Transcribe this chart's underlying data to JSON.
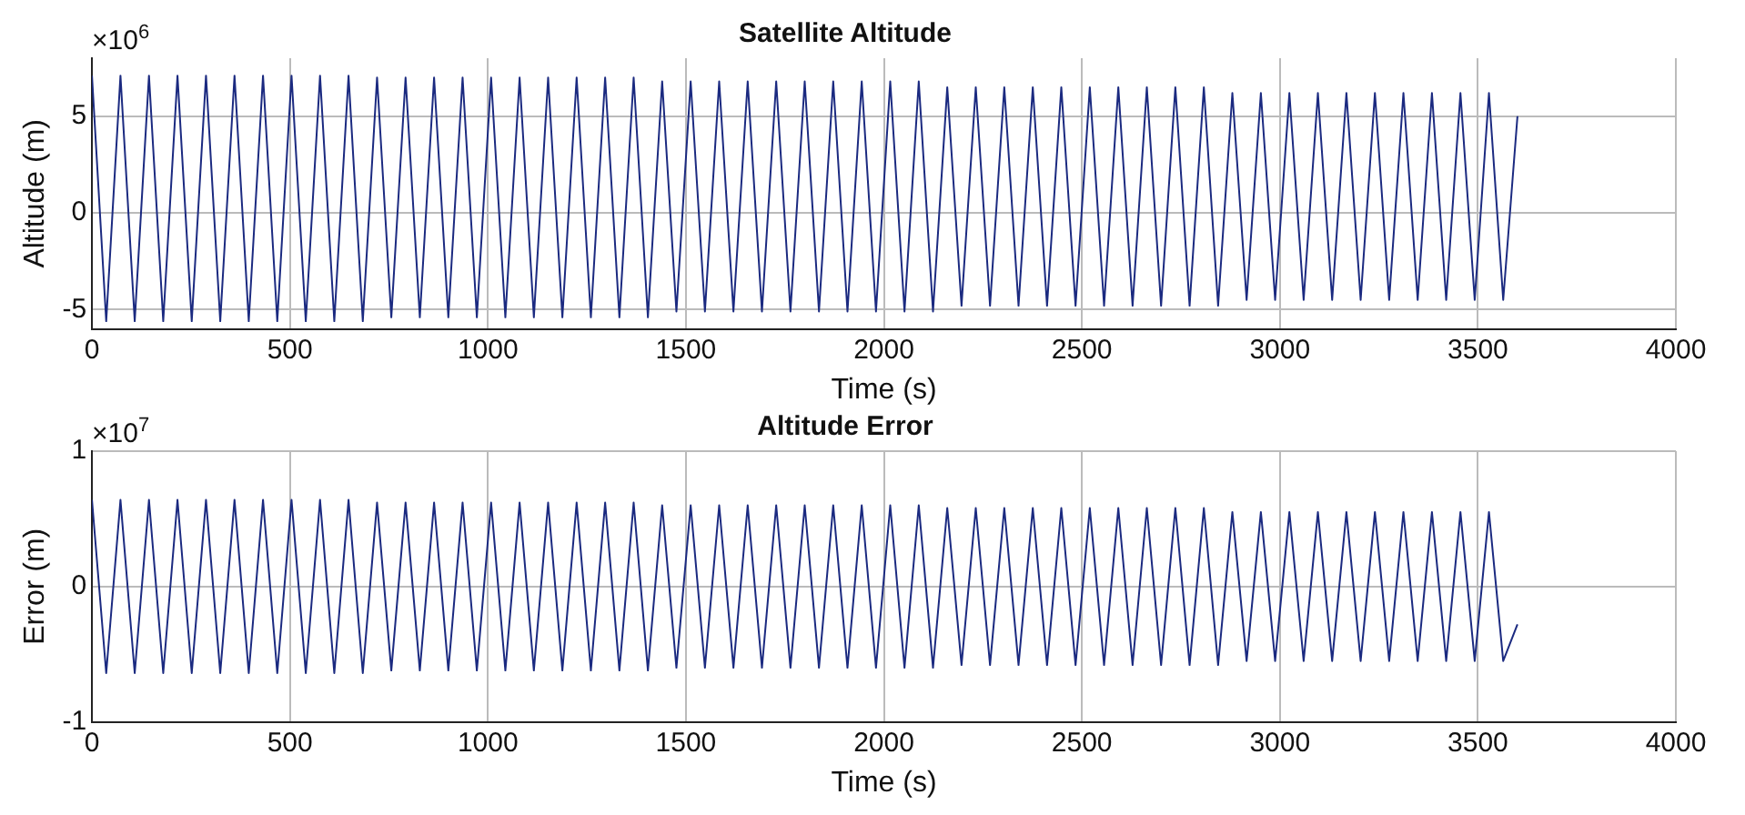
{
  "chart_data": [
    {
      "type": "line",
      "title": "Satellite Altitude",
      "xlabel": "Time (s)",
      "ylabel": "Altitude (m)",
      "annotations": [
        "×10$^{6}$"
      ],
      "grid": true,
      "legend": false,
      "marker": "none",
      "line_style": "solid",
      "xlim": [
        0,
        4000
      ],
      "xticks": [
        0,
        500,
        1000,
        1500,
        2000,
        2500,
        3000,
        3500,
        4000
      ],
      "ylim": [
        -6,
        8
      ],
      "yticks": [
        -5,
        0,
        5
      ],
      "x": [
        0,
        36,
        72,
        108,
        144,
        180,
        216,
        252,
        288,
        324,
        360,
        396,
        432,
        468,
        504,
        540,
        576,
        612,
        648,
        684,
        720,
        756,
        792,
        828,
        864,
        900,
        936,
        972,
        1008,
        1044,
        1080,
        1116,
        1152,
        1188,
        1224,
        1260,
        1296,
        1332,
        1368,
        1404,
        1440,
        1476,
        1512,
        1548,
        1584,
        1620,
        1656,
        1692,
        1728,
        1764,
        1800,
        1836,
        1872,
        1908,
        1944,
        1980,
        2016,
        2052,
        2088,
        2124,
        2160,
        2196,
        2232,
        2268,
        2304,
        2340,
        2376,
        2412,
        2448,
        2484,
        2520,
        2556,
        2592,
        2628,
        2664,
        2700,
        2736,
        2772,
        2808,
        2844,
        2880,
        2916,
        2952,
        2988,
        3024,
        3060,
        3096,
        3132,
        3168,
        3204,
        3240,
        3276,
        3312,
        3348,
        3384,
        3420,
        3456,
        3492,
        3528,
        3564,
        3600
      ],
      "series": [
        {
          "color": "#1b2a80",
          "values": [
            7.1,
            -5.6,
            7.1,
            -5.6,
            7.1,
            -5.6,
            7.1,
            -5.6,
            7.1,
            -5.6,
            7.1,
            -5.6,
            7.1,
            -5.6,
            7.1,
            -5.6,
            7.1,
            -5.6,
            7.1,
            -5.6,
            7.0,
            -5.4,
            7.0,
            -5.4,
            7.0,
            -5.4,
            7.0,
            -5.4,
            7.0,
            -5.4,
            7.0,
            -5.4,
            7.0,
            -5.4,
            7.0,
            -5.4,
            7.0,
            -5.4,
            7.0,
            -5.4,
            6.8,
            -5.1,
            6.8,
            -5.1,
            6.8,
            -5.1,
            6.8,
            -5.1,
            6.8,
            -5.1,
            6.8,
            -5.1,
            6.8,
            -5.1,
            6.8,
            -5.1,
            6.8,
            -5.1,
            6.8,
            -5.1,
            6.5,
            -4.8,
            6.5,
            -4.8,
            6.5,
            -4.8,
            6.5,
            -4.8,
            6.5,
            -4.8,
            6.5,
            -4.8,
            6.5,
            -4.8,
            6.5,
            -4.8,
            6.5,
            -4.8,
            6.5,
            -4.8,
            6.2,
            -4.5,
            6.2,
            -4.5,
            6.2,
            -4.5,
            6.2,
            -4.5,
            6.2,
            -4.5,
            6.2,
            -4.5,
            6.2,
            -4.5,
            6.2,
            -4.5,
            6.2,
            -4.5,
            6.2,
            -4.5,
            5
          ]
        }
      ]
    },
    {
      "type": "line",
      "title": "Altitude Error",
      "xlabel": "Time (s)",
      "ylabel": "Error (m)",
      "annotations": [
        "×10$^{7}$"
      ],
      "grid": true,
      "legend": false,
      "marker": "none",
      "line_style": "solid",
      "xlim": [
        0,
        4000
      ],
      "xticks": [
        0,
        500,
        1000,
        1500,
        2000,
        2500,
        3000,
        3500,
        4000
      ],
      "ylim": [
        -1,
        1
      ],
      "yticks": [
        -1,
        0,
        1
      ],
      "x": [
        0,
        36,
        72,
        108,
        144,
        180,
        216,
        252,
        288,
        324,
        360,
        396,
        432,
        468,
        504,
        540,
        576,
        612,
        648,
        684,
        720,
        756,
        792,
        828,
        864,
        900,
        936,
        972,
        1008,
        1044,
        1080,
        1116,
        1152,
        1188,
        1224,
        1260,
        1296,
        1332,
        1368,
        1404,
        1440,
        1476,
        1512,
        1548,
        1584,
        1620,
        1656,
        1692,
        1728,
        1764,
        1800,
        1836,
        1872,
        1908,
        1944,
        1980,
        2016,
        2052,
        2088,
        2124,
        2160,
        2196,
        2232,
        2268,
        2304,
        2340,
        2376,
        2412,
        2448,
        2484,
        2520,
        2556,
        2592,
        2628,
        2664,
        2700,
        2736,
        2772,
        2808,
        2844,
        2880,
        2916,
        2952,
        2988,
        3024,
        3060,
        3096,
        3132,
        3168,
        3204,
        3240,
        3276,
        3312,
        3348,
        3384,
        3420,
        3456,
        3492,
        3528,
        3564,
        3600
      ],
      "series": [
        {
          "color": "#1b2a80",
          "values": [
            0.64,
            -0.64,
            0.64,
            -0.64,
            0.64,
            -0.64,
            0.64,
            -0.64,
            0.64,
            -0.64,
            0.64,
            -0.64,
            0.64,
            -0.64,
            0.64,
            -0.64,
            0.64,
            -0.64,
            0.64,
            -0.64,
            0.62,
            -0.62,
            0.62,
            -0.62,
            0.62,
            -0.62,
            0.62,
            -0.62,
            0.62,
            -0.62,
            0.62,
            -0.62,
            0.62,
            -0.62,
            0.62,
            -0.62,
            0.62,
            -0.62,
            0.62,
            -0.62,
            0.6,
            -0.6,
            0.6,
            -0.6,
            0.6,
            -0.6,
            0.6,
            -0.6,
            0.6,
            -0.6,
            0.6,
            -0.6,
            0.6,
            -0.6,
            0.6,
            -0.6,
            0.6,
            -0.6,
            0.6,
            -0.6,
            0.58,
            -0.58,
            0.58,
            -0.58,
            0.58,
            -0.58,
            0.58,
            -0.58,
            0.58,
            -0.58,
            0.58,
            -0.58,
            0.58,
            -0.58,
            0.58,
            -0.58,
            0.58,
            -0.58,
            0.58,
            -0.58,
            0.55,
            -0.55,
            0.55,
            -0.55,
            0.55,
            -0.55,
            0.55,
            -0.55,
            0.55,
            -0.55,
            0.55,
            -0.55,
            0.55,
            -0.55,
            0.55,
            -0.55,
            0.55,
            -0.55,
            0.55,
            -0.55,
            -0.28
          ]
        }
      ]
    }
  ]
}
